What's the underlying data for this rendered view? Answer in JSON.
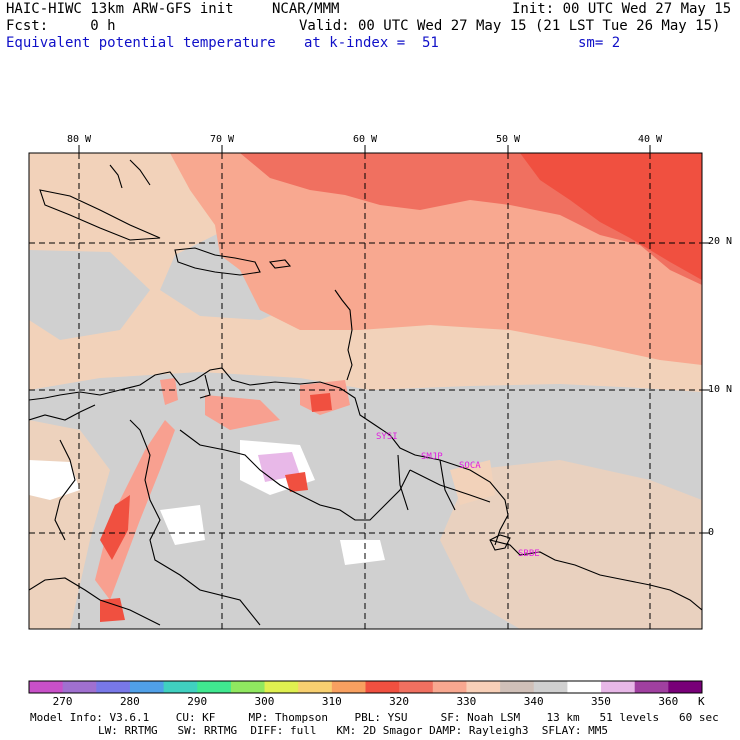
{
  "header": {
    "model": "HAIC-HIWC 13km ARW-GFS init",
    "org": "NCAR/MMM",
    "init": "Init: 00 UTC Wed 27 May 15",
    "fcst": "Fcst:     0 h",
    "valid": "Valid: 00 UTC Wed 27 May 15 (21 LST Tue 26 May 15)",
    "field": "Equivalent potential temperature",
    "level": "at k-index =  51",
    "smooth": "sm= 2"
  },
  "axes": {
    "lon_labels": [
      "80 W",
      "70 W",
      "60 W",
      "50 W",
      "40 W"
    ],
    "lat_labels": [
      "20 N",
      "10 N",
      "0"
    ]
  },
  "stations": [
    "SYSI",
    "SMJP",
    "SOCA",
    "SBBE"
  ],
  "colorbar": {
    "ticks": [
      "270",
      "280",
      "290",
      "300",
      "310",
      "320",
      "330",
      "340",
      "350",
      "360"
    ],
    "unit": "K",
    "colors": [
      "#c850c8",
      "#a070d0",
      "#7878e8",
      "#50a0e8",
      "#40d0c0",
      "#40e890",
      "#90e860",
      "#e0f050",
      "#f8d070",
      "#f8a060",
      "#f05040",
      "#f07060",
      "#f8a890",
      "#f8d0b8",
      "#d0c0b8",
      "#d0d0d0",
      "#ffffff",
      "#e8b8e8",
      "#a040a0",
      "#780078"
    ]
  },
  "footer": {
    "line1": "Model Info: V3.6.1    CU: KF     MP: Thompson    PBL: YSU     SF: Noah LSM    13 km   51 levels   60 sec",
    "line2": "LW: RRTMG   SW: RRTMG  DIFF: full   KM: 2D Smagor DAMP: Rayleigh3  SFLAY: MM5"
  }
}
